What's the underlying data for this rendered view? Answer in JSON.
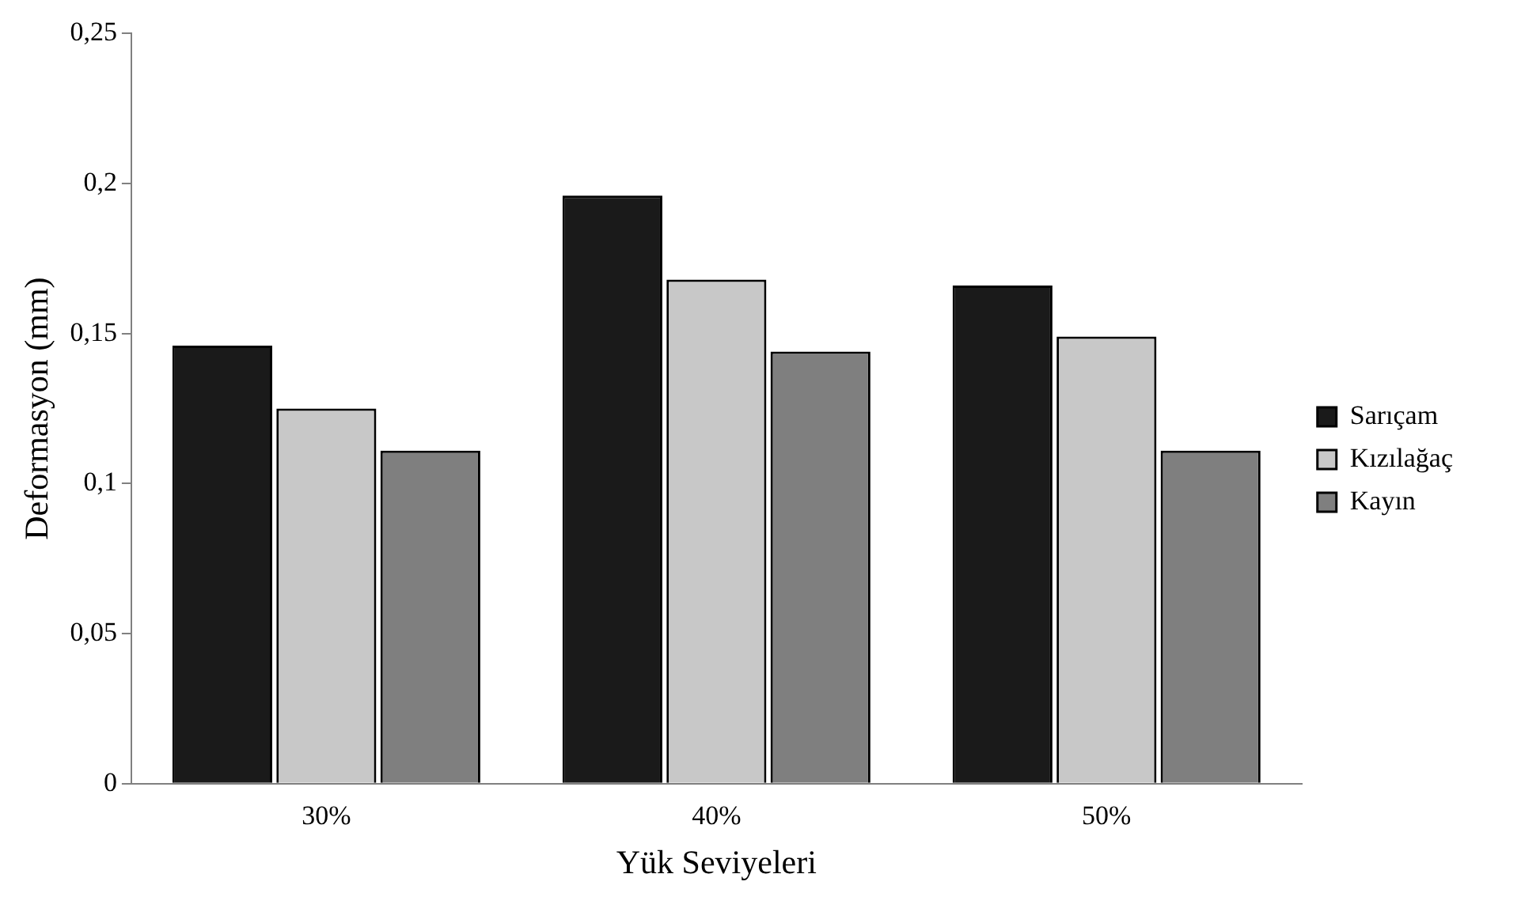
{
  "chart_data": {
    "type": "bar",
    "xlabel": "Yük Seviyeleri",
    "ylabel": "Deformasyon (mm)",
    "categories": [
      "30%",
      "40%",
      "50%"
    ],
    "series": [
      {
        "name": "Sarıçam",
        "color": "#1a1a1a",
        "values": [
          0.146,
          0.196,
          0.166
        ]
      },
      {
        "name": "Kızılağaç",
        "color": "#c8c8c8",
        "values": [
          0.125,
          0.168,
          0.149
        ]
      },
      {
        "name": "Kayın",
        "color": "#7f7f7f",
        "values": [
          0.111,
          0.144,
          0.111
        ]
      }
    ],
    "ylim": [
      0,
      0.25
    ],
    "yticks": [
      {
        "value": 0,
        "label": "0"
      },
      {
        "value": 0.05,
        "label": "0,05"
      },
      {
        "value": 0.1,
        "label": "0,1"
      },
      {
        "value": 0.15,
        "label": "0,15"
      },
      {
        "value": 0.2,
        "label": "0,2"
      },
      {
        "value": 0.25,
        "label": "0,25"
      }
    ],
    "grid": false,
    "legend": "right"
  }
}
